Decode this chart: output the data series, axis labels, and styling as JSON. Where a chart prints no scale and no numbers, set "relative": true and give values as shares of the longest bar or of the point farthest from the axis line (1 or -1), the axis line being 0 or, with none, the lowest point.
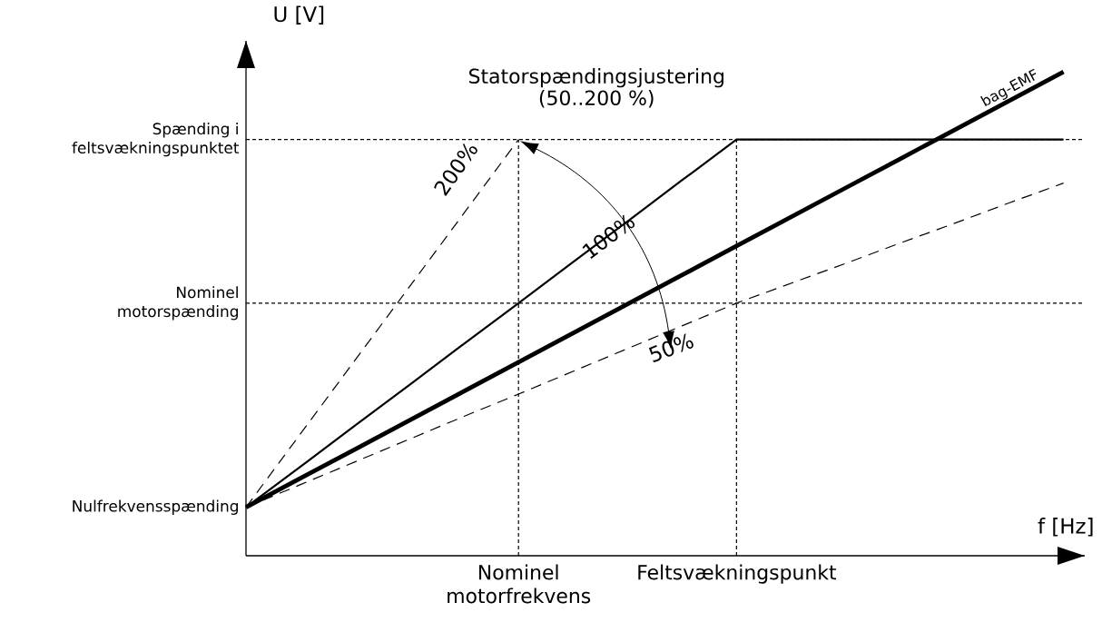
{
  "chart_data": {
    "type": "line",
    "title": "Statorspændingsjustering (50..200 %)",
    "xlabel": "f [Hz]",
    "ylabel": "U [V]",
    "relative": true,
    "categories": [
      null,
      null,
      null,
      null,
      null,
      "Nominel motorfrekvens",
      null,
      null,
      null,
      "Feltsvækningspunkt",
      null,
      null,
      null,
      null,
      null,
      null
    ],
    "annotations": [
      "Nulfrekvensspænding"
    ],
    "ref_lines": [
      {
        "axis": "y",
        "value": 0.86,
        "label": "Spænding i feltsvækningspunktet",
        "color": "#000000",
        "line_style": "dotted"
      },
      {
        "axis": "y",
        "value": 0.522,
        "label": "Nominel motorspænding",
        "color": "#000000",
        "line_style": "dotted"
      }
    ],
    "series": [
      {
        "name": "200%",
        "color": "#000000",
        "line_style": "dashed",
        "values": [
          0.1,
          0.252,
          0.404,
          0.556,
          0.708,
          0.86,
          null,
          null,
          null,
          null,
          null,
          null,
          null,
          null,
          null,
          null
        ]
      },
      {
        "name": "100%",
        "color": "#000000",
        "line_style": "solid",
        "values": [
          0.1,
          0.184,
          0.269,
          0.353,
          0.438,
          0.522,
          0.607,
          0.691,
          0.776,
          0.86,
          0.86,
          0.86,
          0.86,
          0.86,
          0.86,
          0.86
        ]
      },
      {
        "name": "50%",
        "color": "#000000",
        "line_style": "dashed",
        "values": [
          0.1,
          0.147,
          0.194,
          0.241,
          0.288,
          0.334,
          0.381,
          0.428,
          0.475,
          0.522,
          0.563,
          0.604,
          0.646,
          0.687,
          0.729,
          0.77
        ]
      },
      {
        "name": "bag-EMF",
        "color": "#000000",
        "line_style": "solid",
        "values": [
          0.1,
          0.16,
          0.22,
          0.28,
          0.34,
          0.4,
          0.46,
          0.52,
          0.58,
          0.64,
          0.7,
          0.76,
          0.82,
          0.88,
          0.94,
          1.0
        ]
      }
    ]
  }
}
